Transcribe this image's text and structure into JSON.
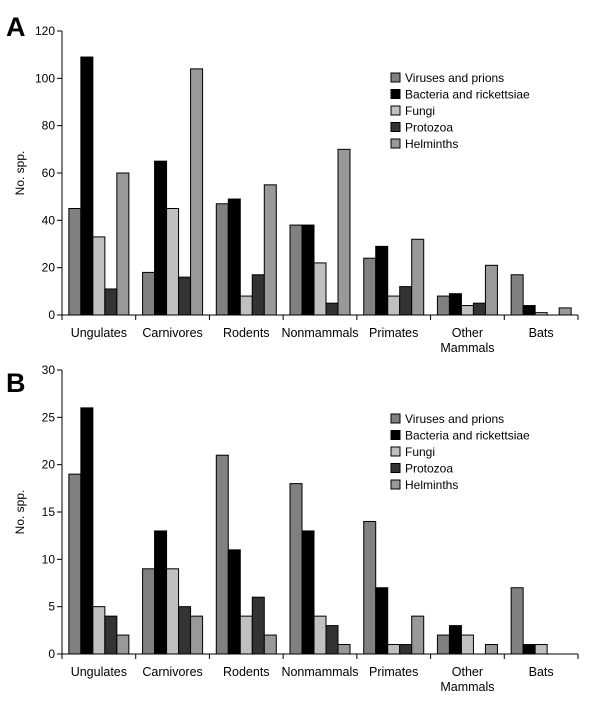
{
  "chart_data": [
    {
      "type": "bar",
      "panel_label": "A",
      "ylabel": "No. spp.",
      "ylim": [
        0,
        120
      ],
      "yticks": [
        "0",
        "20",
        "40",
        "60",
        "80",
        "100",
        "120"
      ],
      "grid": false,
      "legend_position": "top-right",
      "categories": [
        "Ungulates",
        "Carnivores",
        "Rodents",
        "Nonmammals",
        "Primates",
        "Other Mammals",
        "Bats"
      ],
      "category_lines": [
        [
          "Ungulates"
        ],
        [
          "Carnivores"
        ],
        [
          "Rodents"
        ],
        [
          "Nonmammals"
        ],
        [
          "Primates"
        ],
        [
          "Other",
          "Mammals"
        ],
        [
          "Bats"
        ]
      ],
      "series": [
        {
          "name": "Viruses and prions",
          "color": "#808080",
          "values": [
            45,
            18,
            47,
            38,
            24,
            8,
            17
          ]
        },
        {
          "name": "Bacteria and rickettsiae",
          "color": "#000000",
          "values": [
            109,
            65,
            49,
            38,
            29,
            9,
            4
          ]
        },
        {
          "name": "Fungi",
          "color": "#c0c0c0",
          "values": [
            33,
            45,
            8,
            22,
            8,
            4,
            1
          ]
        },
        {
          "name": "Protozoa",
          "color": "#333333",
          "values": [
            11,
            16,
            17,
            5,
            12,
            5,
            0
          ]
        },
        {
          "name": "Helminths",
          "color": "#999999",
          "values": [
            60,
            104,
            55,
            70,
            32,
            21,
            3
          ]
        }
      ]
    },
    {
      "type": "bar",
      "panel_label": "B",
      "ylabel": "No. spp.",
      "ylim": [
        0,
        30
      ],
      "yticks": [
        "0",
        "5",
        "10",
        "15",
        "20",
        "25",
        "30"
      ],
      "grid": false,
      "legend_position": "top-right",
      "categories": [
        "Ungulates",
        "Carnivores",
        "Rodents",
        "Nonmammals",
        "Primates",
        "Other Mammals",
        "Bats"
      ],
      "category_lines": [
        [
          "Ungulates"
        ],
        [
          "Carnivores"
        ],
        [
          "Rodents"
        ],
        [
          "Nonmammals"
        ],
        [
          "Primates"
        ],
        [
          "Other",
          "Mammals"
        ],
        [
          "Bats"
        ]
      ],
      "series": [
        {
          "name": "Viruses and prions",
          "color": "#808080",
          "values": [
            19,
            9,
            21,
            18,
            14,
            2,
            7
          ]
        },
        {
          "name": "Bacteria and rickettsiae",
          "color": "#000000",
          "values": [
            26,
            13,
            11,
            13,
            7,
            3,
            1
          ]
        },
        {
          "name": "Fungi",
          "color": "#c0c0c0",
          "values": [
            5,
            9,
            4,
            4,
            1,
            2,
            1
          ]
        },
        {
          "name": "Protozoa",
          "color": "#333333",
          "values": [
            4,
            5,
            6,
            3,
            1,
            0,
            0
          ]
        },
        {
          "name": "Helminths",
          "color": "#999999",
          "values": [
            2,
            4,
            2,
            1,
            4,
            1,
            0
          ]
        }
      ]
    }
  ]
}
